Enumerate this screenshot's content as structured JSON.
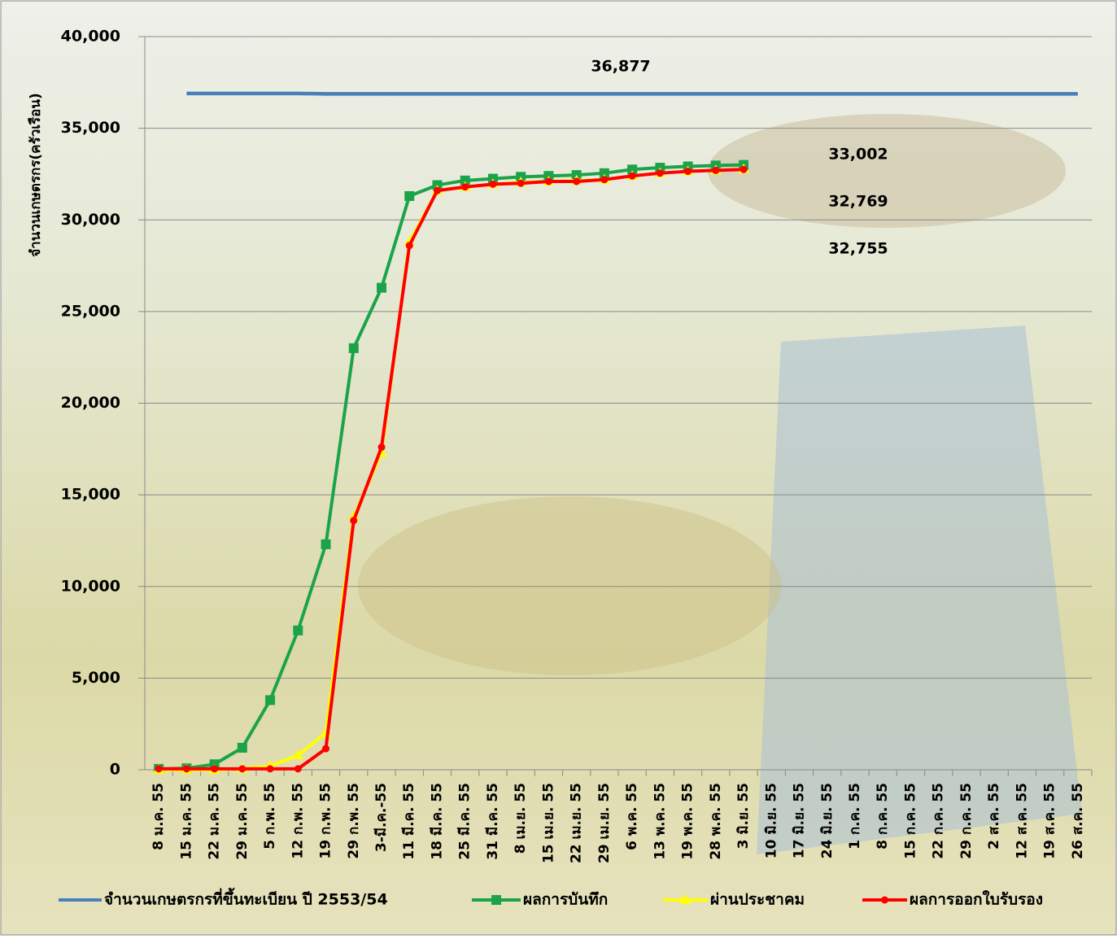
{
  "chart_data": {
    "type": "line",
    "y_label": "จำนวนเกษตรกร(ครัวเรือน)",
    "categories": [
      "8 ม.ค. 55",
      "15 ม.ค. 55",
      "22 ม.ค. 55",
      "29 ม.ค. 55",
      "5 ก.พ. 55",
      "12 ก.พ. 55",
      "19 ก.พ. 55",
      "29 ก.พ. 55",
      "3-มี.ค.-55",
      "11 มี.ค. 55",
      "18 มี.ค. 55",
      "25 มี.ค. 55",
      "31 มี.ค. 55",
      "8 เม.ย. 55",
      "15 เม.ย. 55",
      "22 เม.ย. 55",
      "29 เม.ย. 55",
      "6 พ.ค. 55",
      "13 พ.ค. 55",
      "19 พ.ค. 55",
      "28 พ.ค. 55",
      "3 มิ.ย. 55",
      "10 มิ.ย. 55",
      "17 มิ.ย. 55",
      "24 มิ.ย. 55",
      "1 ก.ค. 55",
      "8 ก.ค. 55",
      "15 ก.ค. 55",
      "22 ก.ค. 55",
      "29 ก.ค. 55",
      "2 ส.ค. 55",
      "12 ส.ค. 55",
      "19 ส.ค. 55",
      "26 ส.ค. 55"
    ],
    "series": [
      {
        "name": "จำนวนเกษตรกรที่ขึ้นทะเบียน ปี 2553/54",
        "color": "#4a7ebb",
        "marker": "none",
        "values": [
          null,
          36900,
          36900,
          36900,
          36900,
          36900,
          36877,
          36877,
          36877,
          36877,
          36877,
          36877,
          36877,
          36877,
          36877,
          36877,
          36877,
          36877,
          36877,
          36877,
          36877,
          36877,
          36877,
          36877,
          36877,
          36877,
          36877,
          36877,
          36877,
          36877,
          36877,
          36877,
          36877,
          36877
        ]
      },
      {
        "name": "ผลการบันทึก",
        "color": "#1ba34a",
        "marker": "square",
        "values": [
          50,
          80,
          300,
          1200,
          3800,
          7600,
          12300,
          23000,
          26300,
          31300,
          31900,
          32150,
          32250,
          32350,
          32400,
          32450,
          32550,
          32750,
          32850,
          32920,
          32970,
          33002,
          null,
          null,
          null,
          null,
          null,
          null,
          null,
          null,
          null,
          null,
          null,
          null
        ]
      },
      {
        "name": "ผ่านประชาคม",
        "color": "#ffff00",
        "marker": "triangle",
        "values": [
          0,
          0,
          0,
          50,
          200,
          800,
          2000,
          13800,
          17300,
          28800,
          31600,
          31800,
          31950,
          32050,
          32100,
          32150,
          32200,
          32400,
          32550,
          32650,
          32700,
          32769,
          null,
          null,
          null,
          null,
          null,
          null,
          null,
          null,
          null,
          null,
          null,
          null
        ]
      },
      {
        "name": "ผลการออกใบรับรอง",
        "color": "#ff0000",
        "marker": "circle",
        "values": [
          50,
          50,
          50,
          50,
          50,
          50,
          1150,
          13600,
          17600,
          28600,
          31600,
          31800,
          31950,
          32000,
          32100,
          32100,
          32200,
          32400,
          32550,
          32650,
          32700,
          32755,
          null,
          null,
          null,
          null,
          null,
          null,
          null,
          null,
          null,
          null,
          null,
          null
        ]
      }
    ],
    "annotations": [
      {
        "text": "36,877",
        "color": "#000000"
      },
      {
        "text": "33,002",
        "color": "#1ba34a"
      },
      {
        "text": "32,769",
        "color": "#000000"
      },
      {
        "text": "32,755",
        "color": "#ff0000"
      }
    ],
    "ylim": [
      0,
      40000
    ],
    "yticks": [
      0,
      {
        "value": 5000,
        "label": "5,000"
      },
      {
        "value": 10000,
        "label": "10,000"
      },
      {
        "value": 15000,
        "label": "15,000"
      },
      {
        "value": 20000,
        "label": "20,000"
      },
      {
        "value": 25000,
        "label": "25,000"
      },
      {
        "value": 30000,
        "label": "30,000"
      },
      {
        "value": 35000,
        "label": "35,000"
      },
      {
        "value": 40000,
        "label": "40,000"
      }
    ],
    "grid": true,
    "legend": "bottom"
  }
}
